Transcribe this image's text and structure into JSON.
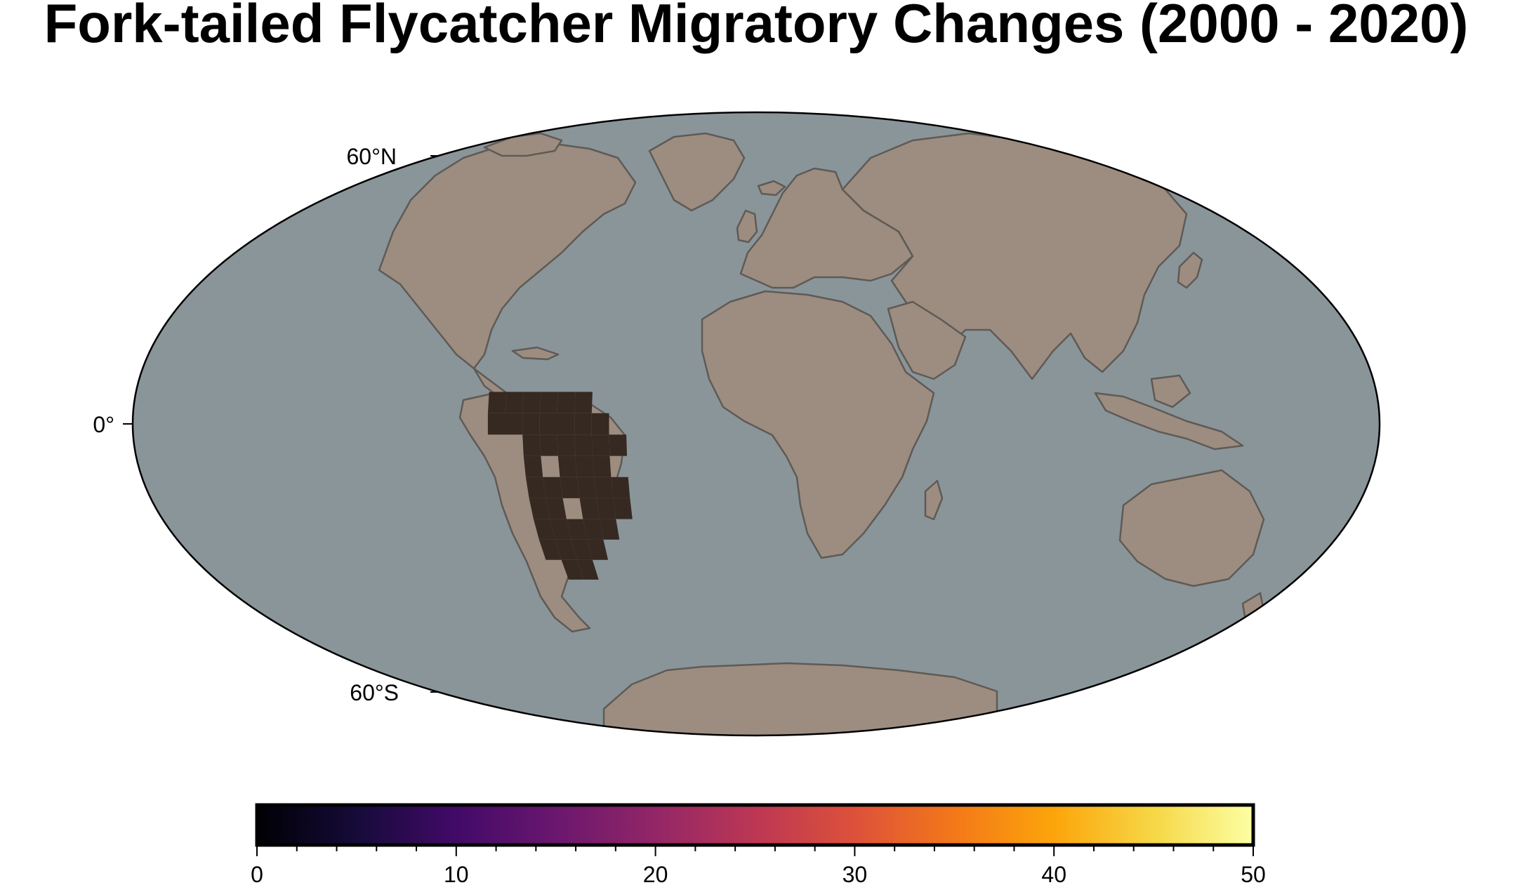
{
  "title": "Fork-tailed Flycatcher Migratory Changes (2000 - 2020)",
  "map": {
    "projection": "Mollweide",
    "ocean_color": "#8a9599",
    "land_color": "#9c8d80",
    "coastline_color": "#5f5a56",
    "latitude_labels": [
      "60°N",
      "0°",
      "60°S"
    ]
  },
  "chart_data": {
    "type": "heatmap",
    "title": "Fork-tailed Flycatcher Migratory Changes (2000 - 2020)",
    "colormap": "inferno",
    "cell_size_deg": 5,
    "range": [
      0,
      50
    ],
    "colorbar_ticks": [
      "0",
      "10",
      "20",
      "30",
      "40",
      "50"
    ],
    "cells_description": "Observed grid cells concentrated over northern and central South America; all shaded near the low end of the scale",
    "cells": [
      {
        "lon": -75,
        "lat": 5,
        "value": 1
      },
      {
        "lon": -70,
        "lat": 5,
        "value": 1
      },
      {
        "lon": -65,
        "lat": 5,
        "value": 1
      },
      {
        "lon": -60,
        "lat": 5,
        "value": 1
      },
      {
        "lon": -55,
        "lat": 5,
        "value": 1
      },
      {
        "lon": -50,
        "lat": 5,
        "value": 1
      },
      {
        "lon": -75,
        "lat": 0,
        "value": 1
      },
      {
        "lon": -70,
        "lat": 0,
        "value": 1
      },
      {
        "lon": -65,
        "lat": 0,
        "value": 1
      },
      {
        "lon": -60,
        "lat": 0,
        "value": 1
      },
      {
        "lon": -55,
        "lat": 0,
        "value": 1
      },
      {
        "lon": -50,
        "lat": 0,
        "value": 1
      },
      {
        "lon": -45,
        "lat": 0,
        "value": 1
      },
      {
        "lon": -65,
        "lat": -5,
        "value": 1
      },
      {
        "lon": -60,
        "lat": -5,
        "value": 1
      },
      {
        "lon": -55,
        "lat": -5,
        "value": 1
      },
      {
        "lon": -50,
        "lat": -5,
        "value": 1
      },
      {
        "lon": -45,
        "lat": -5,
        "value": 1
      },
      {
        "lon": -40,
        "lat": -5,
        "value": 1
      },
      {
        "lon": -65,
        "lat": -10,
        "value": 1
      },
      {
        "lon": -55,
        "lat": -10,
        "value": 1
      },
      {
        "lon": -50,
        "lat": -10,
        "value": 1
      },
      {
        "lon": -45,
        "lat": -10,
        "value": 1
      },
      {
        "lon": -65,
        "lat": -15,
        "value": 1
      },
      {
        "lon": -60,
        "lat": -15,
        "value": 1
      },
      {
        "lon": -55,
        "lat": -15,
        "value": 1
      },
      {
        "lon": -50,
        "lat": -15,
        "value": 1
      },
      {
        "lon": -45,
        "lat": -15,
        "value": 1
      },
      {
        "lon": -40,
        "lat": -15,
        "value": 1
      },
      {
        "lon": -65,
        "lat": -20,
        "value": 1
      },
      {
        "lon": -60,
        "lat": -20,
        "value": 1
      },
      {
        "lon": -50,
        "lat": -20,
        "value": 1
      },
      {
        "lon": -45,
        "lat": -20,
        "value": 1
      },
      {
        "lon": -40,
        "lat": -20,
        "value": 1
      },
      {
        "lon": -65,
        "lat": -25,
        "value": 1
      },
      {
        "lon": -60,
        "lat": -25,
        "value": 1
      },
      {
        "lon": -55,
        "lat": -25,
        "value": 1
      },
      {
        "lon": -50,
        "lat": -25,
        "value": 1
      },
      {
        "lon": -45,
        "lat": -25,
        "value": 1
      },
      {
        "lon": -65,
        "lat": -30,
        "value": 1
      },
      {
        "lon": -60,
        "lat": -30,
        "value": 1
      },
      {
        "lon": -55,
        "lat": -30,
        "value": 1
      },
      {
        "lon": -50,
        "lat": -30,
        "value": 1
      },
      {
        "lon": -60,
        "lat": -35,
        "value": 1
      },
      {
        "lon": -55,
        "lat": -35,
        "value": 1
      }
    ]
  }
}
